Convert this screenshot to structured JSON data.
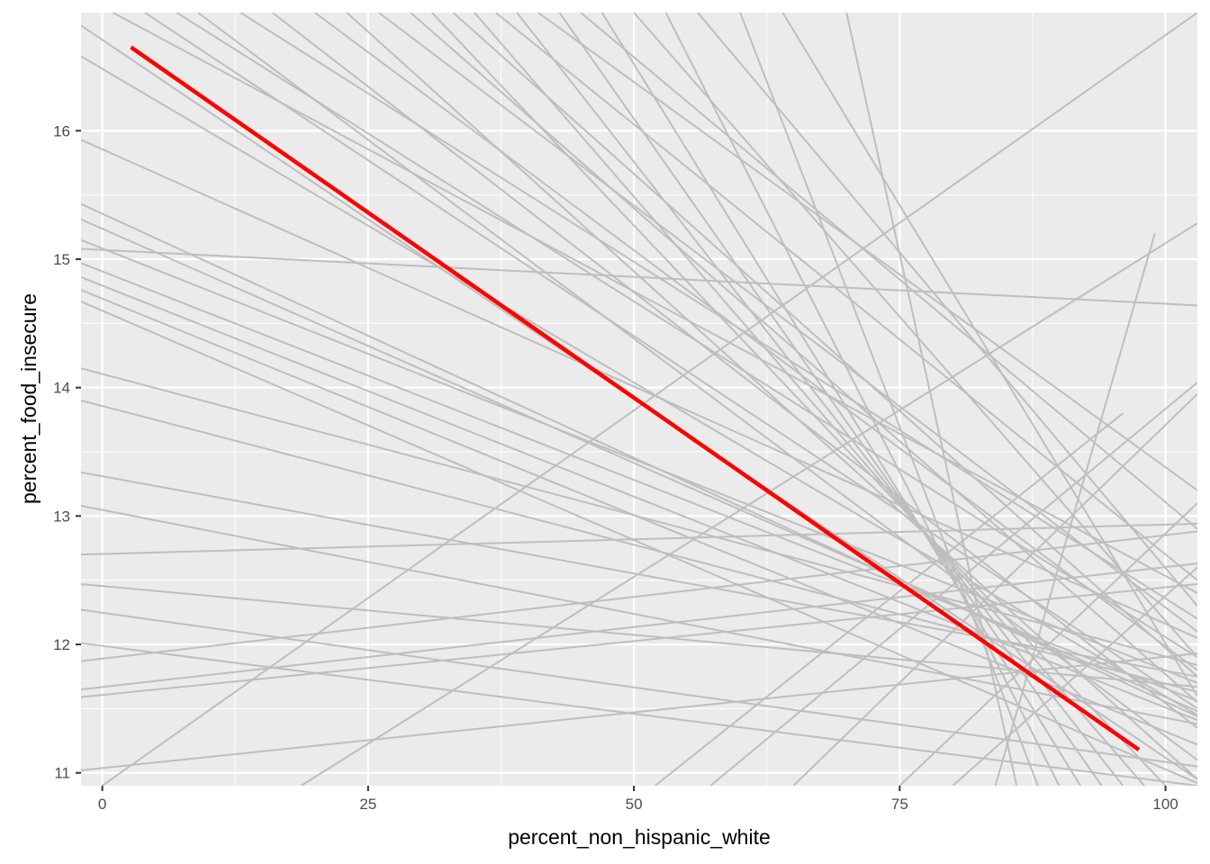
{
  "chart_data": {
    "type": "line",
    "xlabel": "percent_non_hispanic_white",
    "ylabel": "percent_food_insecure",
    "xlim": [
      -2,
      103
    ],
    "ylim": [
      10.9,
      16.92
    ],
    "x_ticks": [
      0,
      25,
      50,
      75,
      100
    ],
    "x_tick_labels": [
      "0",
      "25",
      "50",
      "75",
      "100"
    ],
    "y_ticks": [
      11,
      12,
      13,
      14,
      15,
      16
    ],
    "y_tick_labels": [
      "11",
      "12",
      "13",
      "14",
      "15",
      "16"
    ],
    "grid": true,
    "colors": {
      "panel_background": "#ebebeb",
      "grid_line": "#ffffff",
      "sample_line": "#bebebe",
      "fit_line": "#ff0000"
    },
    "fit_line": {
      "x": [
        2.7,
        97.5
      ],
      "y": [
        16.65,
        11.18
      ]
    },
    "sample_lines": [
      {
        "x": [
          -2,
          103
        ],
        "y": [
          15.08,
          14.64
        ]
      },
      {
        "x": [
          -2,
          103
        ],
        "y": [
          15.43,
          11.44
        ]
      },
      {
        "x": [
          -2,
          103
        ],
        "y": [
          15.31,
          11.48
        ]
      },
      {
        "x": [
          -2,
          103
        ],
        "y": [
          15.15,
          11.7
        ]
      },
      {
        "x": [
          -2,
          103
        ],
        "y": [
          14.97,
          11.56
        ]
      },
      {
        "x": [
          -2,
          103
        ],
        "y": [
          14.86,
          11.41
        ]
      },
      {
        "x": [
          -2,
          103
        ],
        "y": [
          14.76,
          11.22
        ]
      },
      {
        "x": [
          -2,
          103
        ],
        "y": [
          14.67,
          10.92
        ]
      },
      {
        "x": [
          -2,
          103
        ],
        "y": [
          14.15,
          11.84
        ]
      },
      {
        "x": [
          -2,
          103
        ],
        "y": [
          13.9,
          11.63
        ]
      },
      {
        "x": [
          -2,
          103
        ],
        "y": [
          13.34,
          11.75
        ]
      },
      {
        "x": [
          -2,
          103
        ],
        "y": [
          13.08,
          11.38
        ]
      },
      {
        "x": [
          -2,
          103
        ],
        "y": [
          12.47,
          11.67
        ]
      },
      {
        "x": [
          -2,
          103
        ],
        "y": [
          12.27,
          11.05
        ]
      },
      {
        "x": [
          -2,
          103
        ],
        "y": [
          12.01,
          10.9
        ]
      },
      {
        "x": [
          -2,
          103
        ],
        "y": [
          12.7,
          12.94
        ]
      },
      {
        "x": [
          -2,
          103
        ],
        "y": [
          11.87,
          12.88
        ]
      },
      {
        "x": [
          -2,
          103
        ],
        "y": [
          11.65,
          12.63
        ]
      },
      {
        "x": [
          -2,
          103
        ],
        "y": [
          11.59,
          12.47
        ]
      },
      {
        "x": [
          -2,
          103
        ],
        "y": [
          11.02,
          11.93
        ]
      },
      {
        "x": [
          -2,
          103
        ],
        "y": [
          15.93,
          12.05
        ]
      },
      {
        "x": [
          -2,
          103
        ],
        "y": [
          16.58,
          11.45
        ]
      },
      {
        "x": [
          -2,
          103
        ],
        "y": [
          16.82,
          10.95
        ]
      },
      {
        "x": [
          0,
          103
        ],
        "y": [
          10.9,
          16.92
        ]
      },
      {
        "x": [
          18.7,
          103
        ],
        "y": [
          10.9,
          15.28
        ]
      },
      {
        "x": [
          57.2,
          103
        ],
        "y": [
          10.9,
          14.04
        ]
      },
      {
        "x": [
          65,
          103
        ],
        "y": [
          10.9,
          13.95
        ]
      },
      {
        "x": [
          1,
          103
        ],
        "y": [
          16.92,
          12.4
        ]
      },
      {
        "x": [
          4,
          103
        ],
        "y": [
          16.92,
          11.5
        ]
      },
      {
        "x": [
          7,
          103
        ],
        "y": [
          16.92,
          11.9
        ]
      },
      {
        "x": [
          9,
          103
        ],
        "y": [
          16.92,
          11.1
        ]
      },
      {
        "x": [
          13,
          103
        ],
        "y": [
          16.92,
          12.2
        ]
      },
      {
        "x": [
          16,
          103
        ],
        "y": [
          16.92,
          11.35
        ]
      },
      {
        "x": [
          20,
          103
        ],
        "y": [
          16.92,
          11.8
        ]
      },
      {
        "x": [
          23,
          103
        ],
        "y": [
          16.92,
          10.95
        ]
      },
      {
        "x": [
          26,
          103
        ],
        "y": [
          16.92,
          12.1
        ]
      },
      {
        "x": [
          29,
          103
        ],
        "y": [
          16.92,
          11.55
        ]
      },
      {
        "x": [
          31,
          100
        ],
        "y": [
          16.92,
          10.9
        ]
      },
      {
        "x": [
          33,
          103
        ],
        "y": [
          16.92,
          11.75
        ]
      },
      {
        "x": [
          35,
          98
        ],
        "y": [
          16.92,
          10.9
        ]
      },
      {
        "x": [
          37,
          103
        ],
        "y": [
          16.92,
          12.5
        ]
      },
      {
        "x": [
          39,
          96
        ],
        "y": [
          16.92,
          10.9
        ]
      },
      {
        "x": [
          41,
          103
        ],
        "y": [
          16.92,
          13.2
        ]
      },
      {
        "x": [
          43,
          94
        ],
        "y": [
          16.92,
          10.9
        ]
      },
      {
        "x": [
          45,
          103
        ],
        "y": [
          16.92,
          12.9
        ]
      },
      {
        "x": [
          47,
          92
        ],
        "y": [
          16.92,
          10.9
        ]
      },
      {
        "x": [
          50,
          103
        ],
        "y": [
          16.92,
          11.9
        ]
      },
      {
        "x": [
          53,
          90
        ],
        "y": [
          16.92,
          10.9
        ]
      },
      {
        "x": [
          56,
          103
        ],
        "y": [
          16.92,
          12.3
        ]
      },
      {
        "x": [
          60,
          88
        ],
        "y": [
          16.92,
          10.9
        ]
      },
      {
        "x": [
          64,
          103
        ],
        "y": [
          16.92,
          11.6
        ]
      },
      {
        "x": [
          70,
          86
        ],
        "y": [
          16.92,
          10.9
        ]
      },
      {
        "x": [
          52,
          96
        ],
        "y": [
          10.9,
          13.8
        ]
      },
      {
        "x": [
          75,
          103
        ],
        "y": [
          10.9,
          13.1
        ]
      },
      {
        "x": [
          80,
          103
        ],
        "y": [
          10.9,
          12.6
        ]
      },
      {
        "x": [
          84,
          99
        ],
        "y": [
          10.9,
          15.2
        ]
      }
    ]
  }
}
